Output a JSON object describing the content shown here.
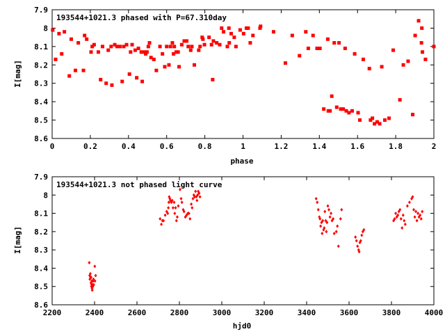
{
  "chart_data": [
    {
      "type": "scatter",
      "title": "193544+1021.3 phased with P=67.310day",
      "xlabel": "phase",
      "ylabel": "I[mag]",
      "xlim": [
        0,
        2
      ],
      "ylim": [
        7.9,
        8.6
      ],
      "y_inverted": true,
      "x_ticks": [
        "0",
        "0.2",
        "0.4",
        "0.6",
        "0.8",
        "1",
        "1.2",
        "1.4",
        "1.6",
        "1.8",
        "2"
      ],
      "y_ticks": [
        "7.9",
        "8",
        "8.1",
        "8.2",
        "8.3",
        "8.4",
        "8.5",
        "8.6"
      ],
      "marker": "square",
      "color": "#ff0000",
      "x": [
        0.003,
        0.018,
        0.036,
        0.05,
        0.064,
        0.09,
        0.1,
        0.122,
        0.137,
        0.164,
        0.17,
        0.181,
        0.204,
        0.21,
        0.22,
        0.242,
        0.254,
        0.264,
        0.283,
        0.294,
        0.309,
        0.313,
        0.328,
        0.34,
        0.355,
        0.367,
        0.375,
        0.39,
        0.405,
        0.411,
        0.419,
        0.435,
        0.443,
        0.452,
        0.467,
        0.472,
        0.482,
        0.49,
        0.497,
        0.504,
        0.51,
        0.518,
        0.533,
        0.546,
        0.565,
        0.578,
        0.59,
        0.6,
        0.612,
        0.62,
        0.63,
        0.636,
        0.64,
        0.65,
        0.66,
        0.665,
        0.679,
        0.692,
        0.705,
        0.713,
        0.726,
        0.732,
        0.745,
        0.768,
        0.775,
        0.786,
        0.79,
        0.798,
        0.822,
        0.835,
        0.841,
        0.845,
        0.862,
        0.878,
        0.888,
        0.898,
        0.918,
        0.926,
        0.928,
        0.938,
        0.954,
        0.963,
        0.985,
        1.003,
        1.018,
        1.027,
        1.038,
        1.052,
        1.089,
        1.092,
        1.16,
        1.222,
        1.258,
        1.296,
        1.329,
        1.342,
        1.367,
        1.388,
        1.403,
        1.423,
        1.444,
        1.447,
        1.456,
        1.465,
        1.478,
        1.491,
        1.503,
        1.512,
        1.525,
        1.535,
        1.541,
        1.555,
        1.572,
        1.585,
        1.603,
        1.612,
        1.63,
        1.662,
        1.668,
        1.678,
        1.689,
        1.703,
        1.716,
        1.727,
        1.743,
        1.765,
        1.787,
        1.822,
        1.84,
        1.865,
        1.889,
        1.902,
        1.92,
        1.935,
        1.937,
        1.94,
        1.956,
        2.0
      ],
      "y": [
        8.01,
        8.17,
        8.03,
        8.14,
        8.02,
        8.26,
        8.06,
        8.23,
        8.08,
        8.23,
        8.04,
        8.06,
        8.13,
        8.1,
        8.09,
        8.13,
        8.28,
        8.1,
        8.3,
        8.12,
        8.1,
        8.31,
        8.09,
        8.1,
        8.1,
        8.29,
        8.1,
        8.09,
        8.25,
        8.13,
        8.09,
        8.12,
        8.27,
        8.11,
        8.13,
        8.29,
        8.13,
        8.14,
        8.13,
        8.1,
        8.08,
        8.16,
        8.17,
        8.23,
        8.1,
        8.14,
        8.21,
        8.1,
        8.2,
        8.1,
        8.08,
        8.14,
        8.1,
        8.13,
        8.13,
        8.21,
        8.09,
        8.07,
        8.07,
        8.1,
        8.12,
        8.1,
        8.2,
        8.12,
        8.1,
        8.05,
        8.06,
        8.09,
        8.05,
        8.09,
        8.28,
        8.07,
        8.08,
        8.09,
        8.0,
        8.02,
        8.1,
        8.0,
        8.08,
        8.03,
        8.05,
        8.1,
        8.01,
        8.03,
        8.0,
        8.0,
        8.08,
        8.04,
        8.0,
        7.99,
        8.02,
        8.19,
        8.04,
        8.15,
        8.02,
        8.11,
        8.04,
        8.11,
        8.11,
        8.44,
        8.06,
        8.45,
        8.45,
        8.37,
        8.08,
        8.43,
        8.08,
        8.44,
        8.44,
        8.11,
        8.45,
        8.46,
        8.45,
        8.14,
        8.46,
        8.5,
        8.17,
        8.22,
        8.5,
        8.49,
        8.52,
        8.51,
        8.52,
        8.21,
        8.5,
        8.49,
        8.12,
        8.39,
        8.2,
        8.18,
        8.47,
        8.04,
        7.96,
        8.08,
        8.0,
        8.13,
        8.17,
        8.1
      ]
    },
    {
      "type": "scatter",
      "title": "193544+1021.3 not phased light curve",
      "xlabel": "hjd0",
      "ylabel": "I[mag]",
      "xlim": [
        2200,
        4000
      ],
      "ylim": [
        7.9,
        8.6
      ],
      "y_inverted": true,
      "x_ticks": [
        "2200",
        "2400",
        "2600",
        "2800",
        "3000",
        "3200",
        "3400",
        "3600",
        "3800",
        "4000"
      ],
      "y_ticks": [
        "7.9",
        "8",
        "8.1",
        "8.2",
        "8.3",
        "8.4",
        "8.5",
        "8.6"
      ],
      "marker": "diamond",
      "color": "#ff0000",
      "x": [
        2375,
        2377,
        2378,
        2380,
        2381,
        2383,
        2384,
        2385,
        2386,
        2387,
        2388,
        2389,
        2390,
        2391,
        2392,
        2393,
        2395,
        2396,
        2401,
        2402,
        2405,
        2709,
        2715,
        2720,
        2725,
        2733,
        2740,
        2745,
        2748,
        2750,
        2752,
        2755,
        2758,
        2762,
        2766,
        2770,
        2775,
        2778,
        2782,
        2786,
        2790,
        2795,
        2803,
        2808,
        2812,
        2818,
        2822,
        2828,
        2834,
        2840,
        2845,
        2850,
        2856,
        2860,
        2864,
        2868,
        2872,
        2876,
        2880,
        2883,
        2886,
        2889,
        2893,
        2897,
        3445,
        3450,
        3455,
        3460,
        3463,
        3466,
        3470,
        3473,
        3476,
        3480,
        3483,
        3486,
        3490,
        3493,
        3496,
        3500,
        3505,
        3510,
        3515,
        3520,
        3525,
        3530,
        3540,
        3545,
        3550,
        3560,
        3565,
        3630,
        3635,
        3640,
        3645,
        3648,
        3651,
        3655,
        3660,
        3665,
        3670,
        3810,
        3815,
        3820,
        3825,
        3830,
        3835,
        3840,
        3845,
        3850,
        3855,
        3860,
        3865,
        3875,
        3885,
        3895,
        3900,
        3905,
        3910,
        3915,
        3920,
        3925,
        3930,
        3935,
        3940,
        3945
      ],
      "y": [
        8.37,
        8.44,
        8.46,
        8.43,
        8.45,
        8.48,
        8.45,
        8.5,
        8.49,
        8.47,
        8.51,
        8.52,
        8.5,
        8.49,
        8.5,
        8.47,
        8.46,
        8.49,
        8.39,
        8.47,
        8.44,
        8.13,
        8.16,
        8.14,
        8.14,
        8.11,
        8.09,
        8.1,
        8.07,
        8.04,
        8.01,
        8.02,
        8.03,
        8.04,
        8.03,
        8.07,
        8.04,
        8.1,
        8.07,
        8.14,
        8.12,
        8.06,
        7.97,
        8.02,
        8.04,
        8.08,
        8.09,
        8.12,
        8.11,
        8.1,
        8.1,
        8.13,
        8.05,
        8.07,
        8.02,
        8.0,
        8.01,
        7.98,
        8.01,
        8.03,
        8.0,
        7.98,
        7.99,
        8.01,
        8.02,
        8.04,
        8.08,
        8.12,
        8.13,
        8.17,
        8.15,
        8.21,
        8.14,
        8.19,
        8.18,
        8.09,
        8.14,
        8.2,
        8.15,
        8.06,
        8.08,
        8.12,
        8.1,
        8.14,
        8.13,
        8.21,
        8.2,
        8.17,
        8.28,
        8.13,
        8.08,
        8.23,
        8.25,
        8.28,
        8.3,
        8.31,
        8.26,
        8.25,
        8.22,
        8.2,
        8.19,
        8.14,
        8.13,
        8.1,
        8.12,
        8.11,
        8.09,
        8.08,
        8.13,
        8.18,
        8.11,
        8.14,
        8.16,
        8.06,
        8.04,
        8.02,
        8.01,
        8.08,
        8.12,
        8.09,
        8.14,
        8.1,
        8.12,
        8.11,
        8.13,
        8.09
      ]
    }
  ]
}
